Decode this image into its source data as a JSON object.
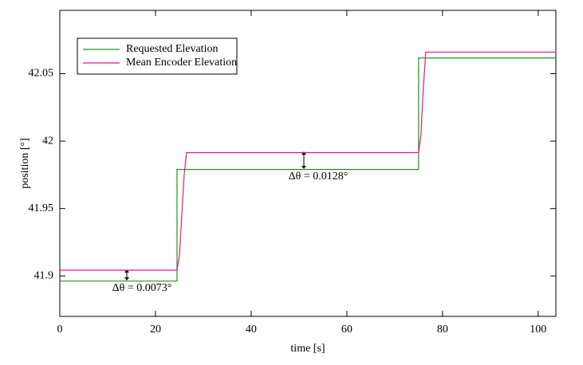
{
  "chart_data": {
    "type": "line",
    "x_label": "time [s]",
    "y_label": "position [°]",
    "xlim": [
      0,
      103.7
    ],
    "xticks": [
      0,
      20,
      40,
      60,
      80,
      100
    ],
    "ylim": [
      41.87,
      42.097
    ],
    "yticks": [
      41.9,
      41.95,
      42,
      42.05
    ],
    "legend": "upper left",
    "series": [
      {
        "name": "Requested Elevation",
        "color": "#1a9a1a",
        "x": [
          0,
          24.5,
          24.5,
          75,
          75,
          103.7
        ],
        "values": [
          41.8962,
          41.8962,
          41.979,
          41.979,
          42.0617,
          42.0617
        ]
      },
      {
        "name": "Mean Encoder Elevation",
        "color": "#e6168c",
        "x": [
          0,
          24.5,
          25,
          25.5,
          26,
          26.5,
          75,
          75.5,
          76,
          76.5,
          103.7
        ],
        "values": [
          41.9043,
          41.9043,
          41.915,
          41.945,
          41.975,
          41.9915,
          41.9915,
          42.005,
          42.04,
          42.066,
          42.066
        ]
      }
    ],
    "annotations": [
      "Δθ = 0.0073°",
      "Δθ = 0.0128°"
    ]
  }
}
